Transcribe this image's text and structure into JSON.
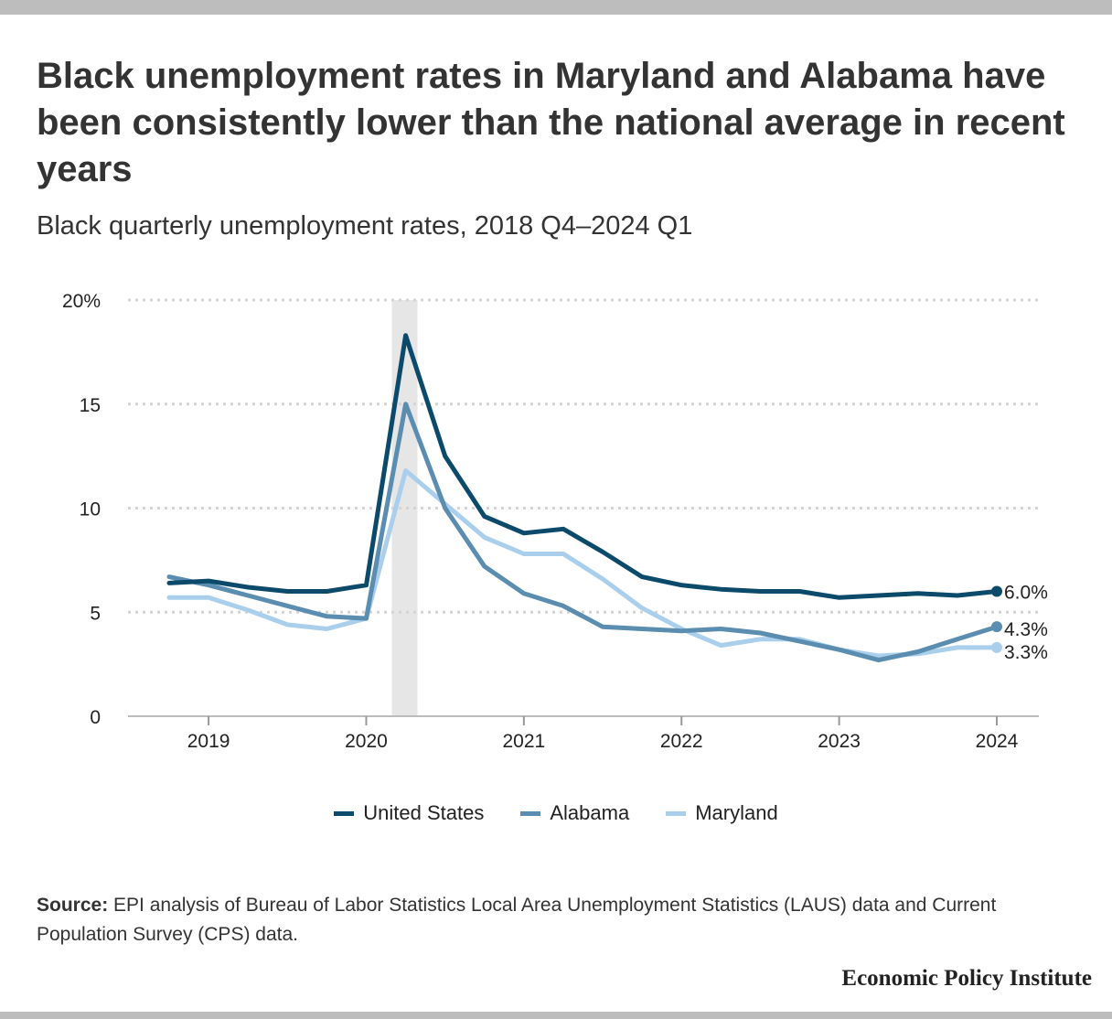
{
  "header": {
    "title": "Black unemployment rates in Maryland and Alabama have been consistently lower than the national average in recent years",
    "subtitle": "Black quarterly unemployment rates, 2018 Q4–2024 Q1"
  },
  "chart_data": {
    "type": "line",
    "x": [
      "2018 Q4",
      "2019 Q1",
      "2019 Q2",
      "2019 Q3",
      "2019 Q4",
      "2020 Q1",
      "2020 Q2",
      "2020 Q3",
      "2020 Q4",
      "2021 Q1",
      "2021 Q2",
      "2021 Q3",
      "2021 Q4",
      "2022 Q1",
      "2022 Q2",
      "2022 Q3",
      "2022 Q4",
      "2023 Q1",
      "2023 Q2",
      "2023 Q3",
      "2023 Q4",
      "2024 Q1"
    ],
    "series": [
      {
        "name": "United States",
        "color": "#0b4a6b",
        "values": [
          6.4,
          6.5,
          6.2,
          6.0,
          6.0,
          6.3,
          18.3,
          12.5,
          9.6,
          8.8,
          9.0,
          7.9,
          6.7,
          6.3,
          6.1,
          6.0,
          6.0,
          5.7,
          5.8,
          5.9,
          5.8,
          6.0
        ],
        "end_label": "6.0%"
      },
      {
        "name": "Alabama",
        "color": "#5b8db0",
        "values": [
          6.7,
          6.3,
          5.8,
          5.3,
          4.8,
          4.7,
          15.0,
          10.0,
          7.2,
          5.9,
          5.3,
          4.3,
          4.2,
          4.1,
          4.2,
          4.0,
          3.6,
          3.2,
          2.7,
          3.1,
          3.7,
          4.3
        ],
        "end_label": "4.3%"
      },
      {
        "name": "Maryland",
        "color": "#a9cfec",
        "values": [
          5.7,
          5.7,
          5.1,
          4.4,
          4.2,
          4.7,
          11.8,
          10.2,
          8.6,
          7.8,
          7.8,
          6.6,
          5.2,
          4.2,
          3.4,
          3.7,
          3.7,
          3.2,
          2.9,
          3.0,
          3.3,
          3.3
        ],
        "end_label": "3.3%"
      }
    ],
    "x_ticks": [
      "2019",
      "2020",
      "2021",
      "2022",
      "2023",
      "2024"
    ],
    "y_ticks": [
      "0",
      "5",
      "10",
      "15",
      "20%"
    ],
    "ylim": [
      0,
      20
    ],
    "shaded_period": [
      "2020 Q1",
      "2020 Q2"
    ],
    "grid": true,
    "legend_position": "bottom"
  },
  "footer": {
    "source_label": "Source:",
    "source_text": " EPI analysis of Bureau of Labor Statistics Local Area Unemployment Statistics (LAUS) data and Current Population Survey (CPS) data.",
    "brand": "Economic Policy Institute"
  }
}
